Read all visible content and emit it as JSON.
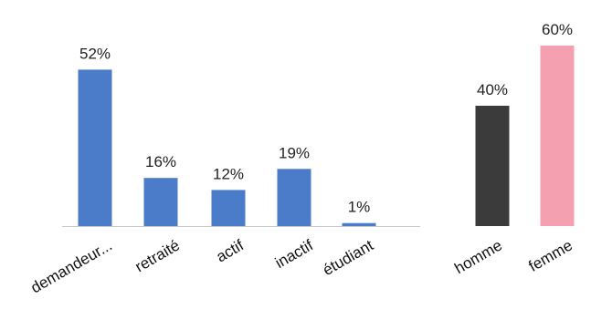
{
  "chart_data": {
    "type": "bar",
    "categories": [
      "demandeur...",
      "retraité",
      "actif",
      "inactif",
      "étudiant",
      "homme",
      "femme"
    ],
    "values": [
      52,
      16,
      12,
      19,
      1,
      40,
      60
    ],
    "value_labels": [
      "52%",
      "16%",
      "12%",
      "19%",
      "1%",
      "40%",
      "60%"
    ],
    "unit": "%",
    "ylim": [
      0,
      60
    ],
    "grid": false,
    "legend": "none",
    "colors": [
      "#4a7cc9",
      "#4a7cc9",
      "#4a7cc9",
      "#4a7cc9",
      "#4a7cc9",
      "#3b3b3b",
      "#f4a0b0"
    ]
  }
}
